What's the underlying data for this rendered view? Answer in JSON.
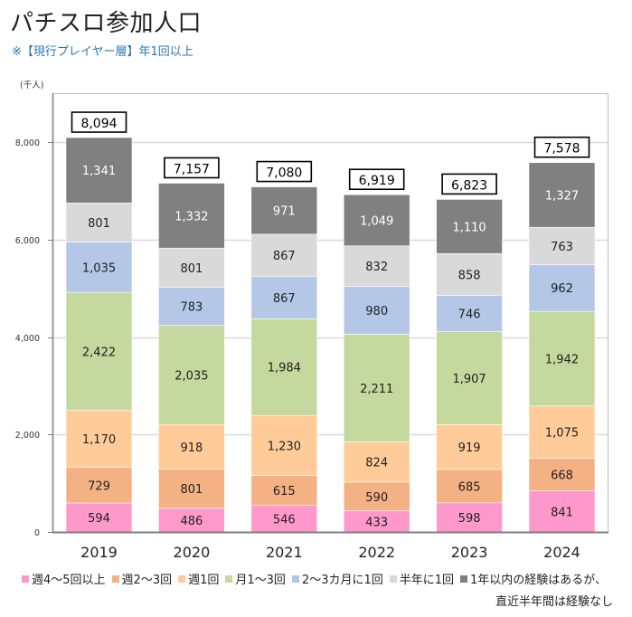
{
  "title": "パチスロ参加人口",
  "subtitle": "※【現行プレイヤー層】年1回以上",
  "chart_data": {
    "type": "bar",
    "stacked": true,
    "title": "パチスロ参加人口",
    "ylabel": "(千人)",
    "xlabel": "",
    "ylim": [
      0,
      9000
    ],
    "yticks": [
      0,
      2000,
      4000,
      6000,
      8000
    ],
    "ytick_labels": [
      "0",
      "2,000",
      "4,000",
      "6,000",
      "8,000"
    ],
    "grid": true,
    "legend_position": "bottom",
    "categories": [
      "2019",
      "2020",
      "2021",
      "2022",
      "2023",
      "2024"
    ],
    "totals": [
      8094,
      7157,
      7080,
      6919,
      6823,
      7578
    ],
    "total_labels": [
      "8,094",
      "7,157",
      "7,080",
      "6,919",
      "6,823",
      "7,578"
    ],
    "series": [
      {
        "name": "週4～5回以上",
        "color": "#ff99cc",
        "label_color": "#222222",
        "values": [
          594,
          486,
          546,
          433,
          598,
          841
        ],
        "labels": [
          "594",
          "486",
          "546",
          "433",
          "598",
          "841"
        ]
      },
      {
        "name": "週2～3回",
        "color": "#f4b183",
        "label_color": "#222222",
        "values": [
          729,
          801,
          615,
          590,
          685,
          668
        ],
        "labels": [
          "729",
          "801",
          "615",
          "590",
          "685",
          "668"
        ]
      },
      {
        "name": "週1回",
        "color": "#ffcc99",
        "label_color": "#222222",
        "values": [
          1170,
          918,
          1230,
          824,
          919,
          1075
        ],
        "labels": [
          "1,170",
          "918",
          "1,230",
          "824",
          "919",
          "1,075"
        ]
      },
      {
        "name": "月1～3回",
        "color": "#c5d89e",
        "label_color": "#222222",
        "values": [
          2422,
          2035,
          1984,
          2211,
          1907,
          1942
        ],
        "labels": [
          "2,422",
          "2,035",
          "1,984",
          "2,211",
          "1,907",
          "1,942"
        ]
      },
      {
        "name": "2～3カ月に1回",
        "color": "#b4c7e7",
        "label_color": "#222222",
        "values": [
          1035,
          783,
          867,
          980,
          746,
          962
        ],
        "labels": [
          "1,035",
          "783",
          "867",
          "980",
          "746",
          "962"
        ]
      },
      {
        "name": "半年に1回",
        "color": "#d9d9d9",
        "label_color": "#222222",
        "values": [
          801,
          801,
          867,
          832,
          858,
          763
        ],
        "labels": [
          "801",
          "801",
          "867",
          "832",
          "858",
          "763"
        ]
      },
      {
        "name": "1年以内の経験はあるが、直近半年間は経験なし",
        "color": "#808080",
        "label_color": "#ffffff",
        "values": [
          1341,
          1332,
          971,
          1049,
          1110,
          1327
        ],
        "labels": [
          "1,341",
          "1,332",
          "971",
          "1,049",
          "1,110",
          "1,327"
        ]
      }
    ]
  },
  "legend": {
    "items": [
      "週4～5回以上",
      "週2～3回",
      "週1回",
      "月1～3回",
      "2～3カ月に1回",
      "半年に1回",
      "1年以内の経験はあるが、"
    ],
    "last_item_line2": "直近半年間は経験なし"
  }
}
